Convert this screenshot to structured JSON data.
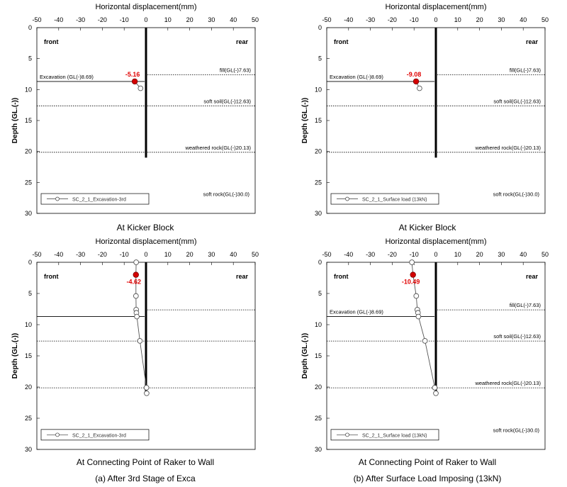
{
  "chart_data": [
    {
      "type": "scatter",
      "panel": "top-left",
      "x_axis_title": "Horizontal displacement(mm)",
      "y_axis_title": "Depth (GL.(-))",
      "xlim": [
        -50,
        50
      ],
      "ylim": [
        0,
        30
      ],
      "x_ticks": [
        -50,
        -40,
        -30,
        -20,
        -10,
        0,
        10,
        20,
        30,
        40,
        50
      ],
      "y_ticks": [
        0,
        5,
        10,
        15,
        20,
        25,
        30
      ],
      "side_labels": {
        "front": "front",
        "rear": "rear"
      },
      "wall_bottom": 21,
      "layers": [
        {
          "label": "fill(GL(-)7.63)",
          "depth": 7.63
        },
        {
          "label": "soft soil(GL(-)12.63)",
          "depth": 12.63
        },
        {
          "label": "weathered rock(GL(-)20.13)",
          "depth": 20.13
        }
      ],
      "bottom_label": "soft rock(GL(-)30.0)",
      "excavation": {
        "label": "Excavation (GL(-)8.69)",
        "depth": 8.69
      },
      "series": [
        {
          "name": "SC_2_1_Excavation-3rd",
          "points": [
            [
              -5.16,
              8.69
            ],
            [
              -2.5,
              9.8
            ]
          ]
        }
      ],
      "highlight": {
        "x": -5.16,
        "y": 8.69,
        "label": "-5.16"
      },
      "caption": "At Kicker Block"
    },
    {
      "type": "scatter",
      "panel": "top-right",
      "x_axis_title": "Horizontal displacement(mm)",
      "y_axis_title": "Depth (GL.(-))",
      "xlim": [
        -50,
        50
      ],
      "ylim": [
        0,
        30
      ],
      "x_ticks": [
        -50,
        -40,
        -30,
        -20,
        -10,
        0,
        10,
        20,
        30,
        40,
        50
      ],
      "y_ticks": [
        0,
        5,
        10,
        15,
        20,
        25,
        30
      ],
      "side_labels": {
        "front": "front",
        "rear": "rear"
      },
      "wall_bottom": 21,
      "layers": [
        {
          "label": "fill(GL(-)7.63)",
          "depth": 7.63
        },
        {
          "label": "soft soil(GL(-)12.63)",
          "depth": 12.63
        },
        {
          "label": "weathered rock(GL(-)20.13)",
          "depth": 20.13
        }
      ],
      "bottom_label": "soft rock(GL(-)30.0)",
      "excavation": {
        "label": "Excavation (GL(-)8.69)",
        "depth": 8.69
      },
      "series": [
        {
          "name": "SC_2_1_Surface load (13kN)",
          "points": [
            [
              -9.08,
              8.69
            ],
            [
              -7.5,
              9.8
            ]
          ]
        }
      ],
      "highlight": {
        "x": -9.08,
        "y": 8.69,
        "label": "-9.08"
      },
      "caption": "At Kicker Block"
    },
    {
      "type": "line",
      "panel": "bottom-left",
      "x_axis_title": "Horizontal displacement(mm)",
      "y_axis_title": "Depth (GL.(-))",
      "xlim": [
        -50,
        50
      ],
      "ylim": [
        0,
        30
      ],
      "x_ticks": [
        -50,
        -40,
        -30,
        -20,
        -10,
        0,
        10,
        20,
        30,
        40,
        50
      ],
      "y_ticks": [
        0,
        5,
        10,
        15,
        20,
        25,
        30
      ],
      "side_labels": {
        "front": "front",
        "rear": "rear"
      },
      "wall_bottom": 21,
      "layers": [
        {
          "label": "",
          "depth": 7.63
        },
        {
          "label": "",
          "depth": 12.63
        },
        {
          "label": "",
          "depth": 20.13
        }
      ],
      "bottom_label": "",
      "excavation": {
        "label": "",
        "depth": 8.69
      },
      "series": [
        {
          "name": "SC_2_1_Excavation-3rd",
          "points": [
            [
              -4.5,
              0
            ],
            [
              -4.62,
              2
            ],
            [
              -4.6,
              5.4
            ],
            [
              -4.5,
              7.6
            ],
            [
              -4.4,
              8.1
            ],
            [
              -4.2,
              8.7
            ],
            [
              -2.8,
              12.6
            ],
            [
              0.2,
              20.1
            ],
            [
              0.3,
              21
            ]
          ]
        }
      ],
      "highlight": {
        "x": -4.62,
        "y": 2,
        "label": "-4.62"
      },
      "caption": "At Connecting Point of Raker to Wall"
    },
    {
      "type": "line",
      "panel": "bottom-right",
      "x_axis_title": "Horizontal displacement(mm)",
      "y_axis_title": "Depth (GL.(-))",
      "xlim": [
        -50,
        50
      ],
      "ylim": [
        0,
        30
      ],
      "x_ticks": [
        -50,
        -40,
        -30,
        -20,
        -10,
        0,
        10,
        20,
        30,
        40,
        50
      ],
      "y_ticks": [
        0,
        5,
        10,
        15,
        20,
        25,
        30
      ],
      "side_labels": {
        "front": "front",
        "rear": "rear"
      },
      "wall_bottom": 21,
      "layers": [
        {
          "label": "fill(GL(-)7.63)",
          "depth": 7.63
        },
        {
          "label": "soft soil(GL(-)12.63)",
          "depth": 12.63
        },
        {
          "label": "weathered rock(GL(-)20.13)",
          "depth": 20.13
        }
      ],
      "bottom_label": "soft rock(GL(-)30.0)",
      "excavation": {
        "label": "Excavation (GL(-)8.69)",
        "depth": 8.69
      },
      "series": [
        {
          "name": "SC_2_1_Surface load (13kN)",
          "points": [
            [
              -11,
              0
            ],
            [
              -10.49,
              2
            ],
            [
              -9,
              5.4
            ],
            [
              -8.5,
              7.6
            ],
            [
              -8.2,
              8.1
            ],
            [
              -8,
              8.7
            ],
            [
              -5,
              12.6
            ],
            [
              -0.5,
              20.1
            ],
            [
              0,
              21
            ]
          ]
        }
      ],
      "highlight": {
        "x": -10.49,
        "y": 2,
        "label": "-10.49"
      },
      "caption": "At Connecting Point of Raker to Wall"
    }
  ],
  "subcaptions": {
    "left": "(a) After 3rd Stage of Exca",
    "right": "(b) After Surface Load Imposing (13kN)"
  }
}
